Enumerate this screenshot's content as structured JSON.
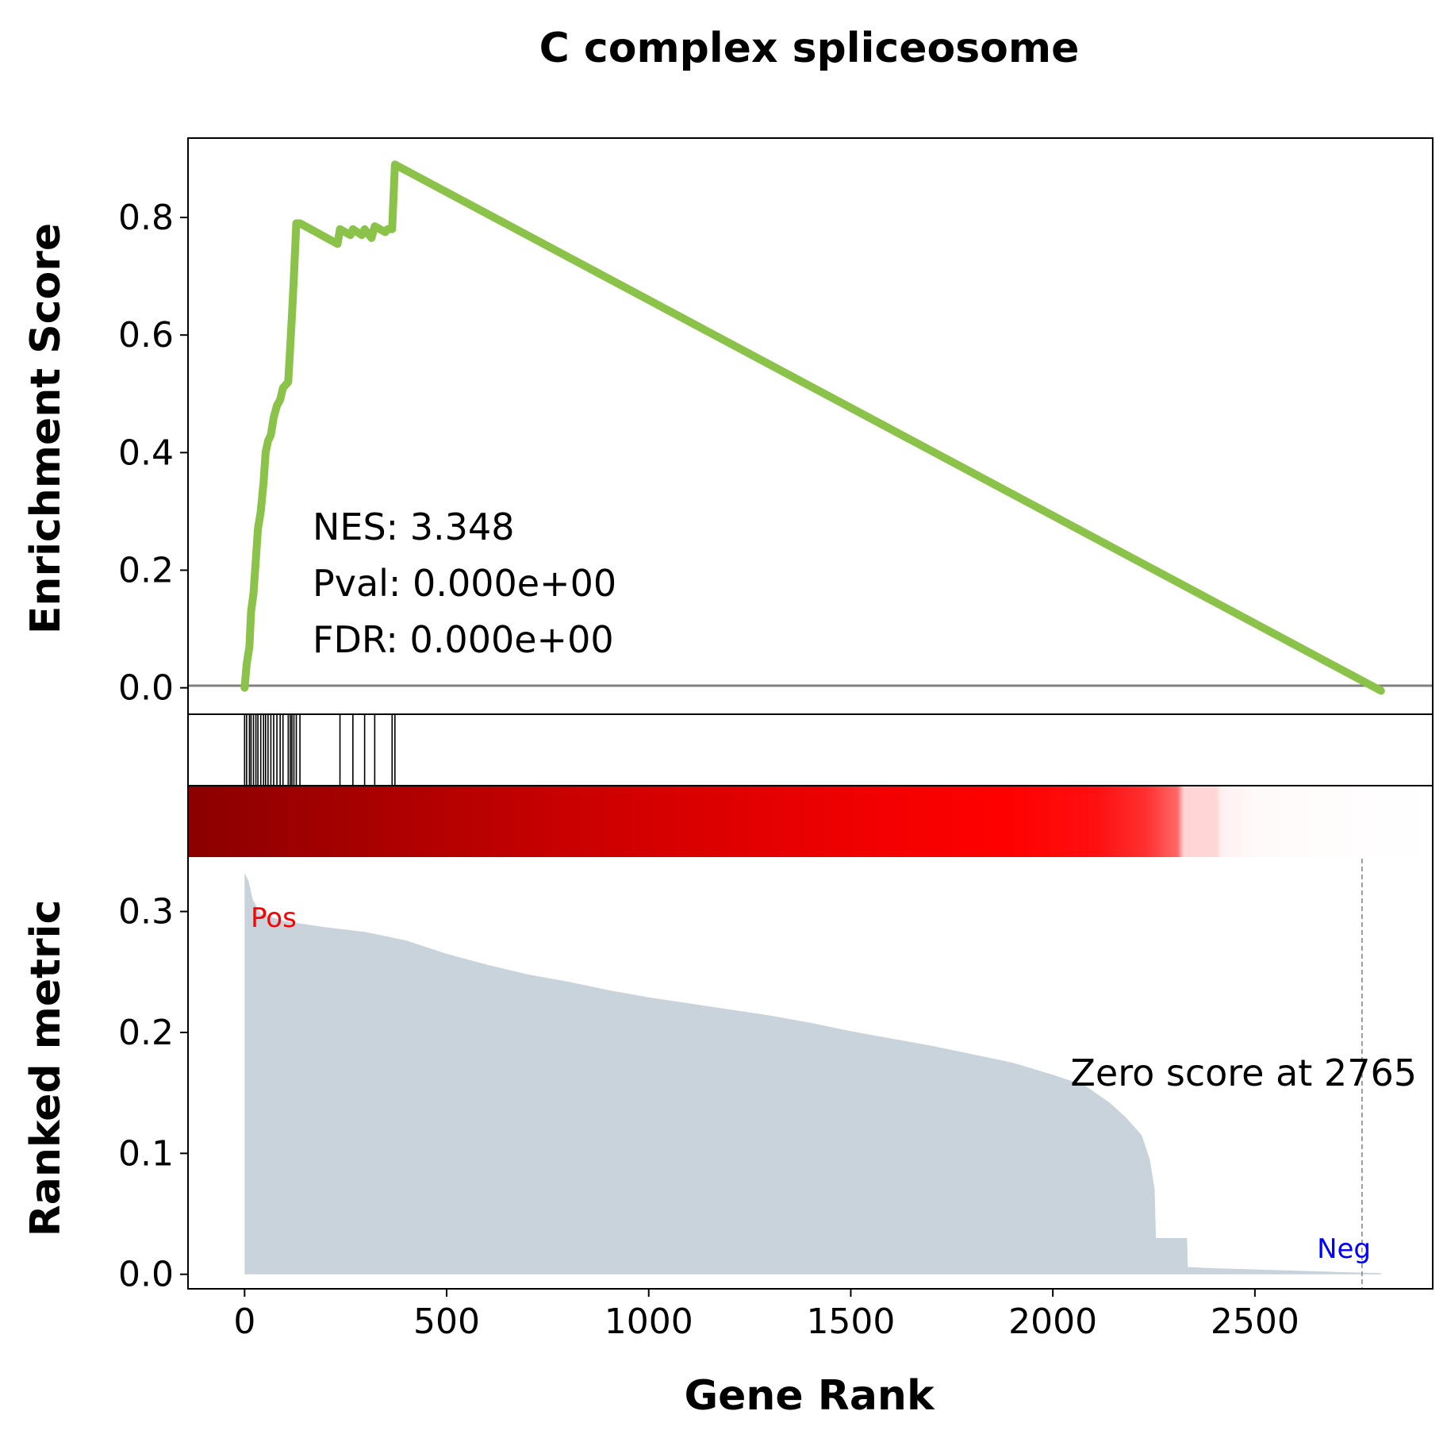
{
  "chart_data": {
    "type": "line",
    "title": "C complex spliceosome",
    "xlabel": "Gene Rank",
    "xlim": [
      -140,
      2940
    ],
    "x_ticks": [
      "0",
      "500",
      "1000",
      "1500",
      "2000",
      "2500"
    ],
    "x_tick_values": [
      0,
      500,
      1000,
      1500,
      2000,
      2500
    ],
    "colors": {
      "es_line": "#8bc34a",
      "zero_line": "#808080",
      "metric_fill": "#c8d3dc",
      "pos_label": "#ff0000",
      "neg_label": "#0000ff",
      "heatmap_dark": "#8b0000",
      "heatmap_bright": "#ff0000"
    },
    "enrichment_panel": {
      "ylabel": "Enrichment Score",
      "ylim": [
        -0.045,
        0.935
      ],
      "y_ticks": [
        "0.0",
        "0.2",
        "0.4",
        "0.6",
        "0.8"
      ],
      "y_tick_values": [
        0.0,
        0.2,
        0.4,
        0.6,
        0.8
      ],
      "es_curve": [
        [
          0,
          0.0
        ],
        [
          5,
          0.04
        ],
        [
          12,
          0.07
        ],
        [
          16,
          0.13
        ],
        [
          22,
          0.16
        ],
        [
          28,
          0.22
        ],
        [
          33,
          0.27
        ],
        [
          40,
          0.3
        ],
        [
          47,
          0.35
        ],
        [
          52,
          0.4
        ],
        [
          58,
          0.42
        ],
        [
          65,
          0.43
        ],
        [
          72,
          0.46
        ],
        [
          80,
          0.48
        ],
        [
          88,
          0.49
        ],
        [
          95,
          0.51
        ],
        [
          108,
          0.52
        ],
        [
          117,
          0.63
        ],
        [
          122,
          0.7
        ],
        [
          128,
          0.79
        ],
        [
          137,
          0.79
        ],
        [
          230,
          0.755
        ],
        [
          236,
          0.78
        ],
        [
          262,
          0.77
        ],
        [
          268,
          0.78
        ],
        [
          290,
          0.77
        ],
        [
          297,
          0.78
        ],
        [
          314,
          0.765
        ],
        [
          322,
          0.785
        ],
        [
          348,
          0.775
        ],
        [
          354,
          0.78
        ],
        [
          365,
          0.78
        ],
        [
          372,
          0.89
        ],
        [
          2812,
          -0.005
        ]
      ],
      "annotations": [
        "NES: 3.348",
        "Pval: 0.000e+00",
        "FDR: 0.000e+00"
      ]
    },
    "hits_panel": {
      "hit_positions": [
        0,
        5,
        12,
        16,
        22,
        28,
        33,
        40,
        47,
        52,
        58,
        65,
        72,
        80,
        88,
        95,
        108,
        113,
        117,
        122,
        128,
        137,
        236,
        268,
        297,
        322,
        365,
        372
      ]
    },
    "metric_panel": {
      "ylabel": "Ranked metric",
      "ylim": [
        -0.012,
        0.345
      ],
      "y_ticks": [
        "0.0",
        "0.1",
        "0.2",
        "0.3"
      ],
      "y_tick_values": [
        0.0,
        0.1,
        0.2,
        0.3
      ],
      "ranked_metric": [
        [
          0,
          0.0
        ],
        [
          0,
          0.332
        ],
        [
          10,
          0.325
        ],
        [
          20,
          0.31
        ],
        [
          40,
          0.298
        ],
        [
          100,
          0.292
        ],
        [
          200,
          0.287
        ],
        [
          300,
          0.283
        ],
        [
          400,
          0.276
        ],
        [
          500,
          0.265
        ],
        [
          600,
          0.256
        ],
        [
          700,
          0.248
        ],
        [
          800,
          0.242
        ],
        [
          900,
          0.235
        ],
        [
          1000,
          0.229
        ],
        [
          1100,
          0.224
        ],
        [
          1200,
          0.219
        ],
        [
          1300,
          0.214
        ],
        [
          1400,
          0.208
        ],
        [
          1500,
          0.201
        ],
        [
          1600,
          0.195
        ],
        [
          1700,
          0.189
        ],
        [
          1800,
          0.182
        ],
        [
          1900,
          0.175
        ],
        [
          2000,
          0.165
        ],
        [
          2080,
          0.156
        ],
        [
          2140,
          0.142
        ],
        [
          2180,
          0.13
        ],
        [
          2220,
          0.115
        ],
        [
          2240,
          0.095
        ],
        [
          2252,
          0.07
        ],
        [
          2255,
          0.03
        ],
        [
          2332,
          0.03
        ],
        [
          2334,
          0.006
        ],
        [
          2400,
          0.005
        ],
        [
          2500,
          0.004
        ],
        [
          2600,
          0.003
        ],
        [
          2700,
          0.002
        ],
        [
          2812,
          0.001
        ],
        [
          2812,
          0.0
        ]
      ],
      "zero_score_rank": 2765,
      "zero_score_label": "Zero score at 2765",
      "pos_label": "Pos",
      "neg_label": "Neg"
    }
  }
}
